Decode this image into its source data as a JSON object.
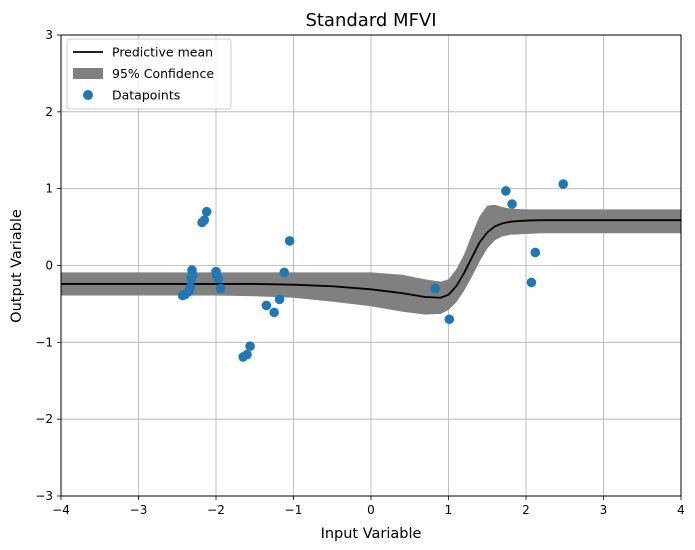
{
  "chart_data": {
    "type": "line",
    "title": "Standard MFVI",
    "xlabel": "Input Variable",
    "ylabel": "Output Variable",
    "xlim": [
      -4,
      4
    ],
    "ylim": [
      -3,
      3
    ],
    "grid": true,
    "legend_placement": "top-left",
    "x_ticks": [
      -4,
      -3,
      -2,
      -1,
      0,
      1,
      2,
      3,
      4
    ],
    "y_ticks": [
      -3,
      -2,
      -1,
      0,
      1,
      2,
      3
    ],
    "x_tick_labels": [
      "−4",
      "−3",
      "−2",
      "−1",
      "0",
      "1",
      "2",
      "3",
      "4"
    ],
    "y_tick_labels": [
      "−3",
      "−2",
      "−1",
      "0",
      "1",
      "2",
      "3"
    ],
    "colors": {
      "mean": "#000000",
      "band": "#808080",
      "points": "#1f77b4",
      "grid": "#b0b0b0"
    },
    "legend": [
      {
        "label": "Predictive mean",
        "kind": "line"
      },
      {
        "label": "95% Confidence",
        "kind": "band"
      },
      {
        "label": "Datapoints",
        "kind": "marker"
      }
    ],
    "series": [
      {
        "name": "Predictive mean",
        "x": [
          -4.0,
          -3.0,
          -2.0,
          -1.5,
          -1.0,
          -0.5,
          0.0,
          0.4,
          0.7,
          0.9,
          1.0,
          1.1,
          1.2,
          1.3,
          1.4,
          1.5,
          1.6,
          1.7,
          1.8,
          2.0,
          2.2,
          2.5,
          3.0,
          4.0
        ],
        "y": [
          -0.24,
          -0.24,
          -0.24,
          -0.24,
          -0.25,
          -0.27,
          -0.31,
          -0.36,
          -0.41,
          -0.42,
          -0.38,
          -0.27,
          -0.1,
          0.1,
          0.3,
          0.43,
          0.51,
          0.55,
          0.57,
          0.585,
          0.59,
          0.59,
          0.59,
          0.59
        ]
      },
      {
        "name": "95% Confidence",
        "x": [
          -4.0,
          -3.0,
          -2.0,
          -1.5,
          -1.0,
          -0.5,
          0.0,
          0.4,
          0.7,
          0.9,
          1.0,
          1.1,
          1.2,
          1.3,
          1.4,
          1.5,
          1.6,
          1.7,
          1.8,
          2.0,
          2.2,
          2.5,
          3.0,
          4.0
        ],
        "lower": [
          -0.39,
          -0.39,
          -0.39,
          -0.4,
          -0.42,
          -0.47,
          -0.53,
          -0.6,
          -0.64,
          -0.63,
          -0.58,
          -0.48,
          -0.33,
          -0.15,
          0.05,
          0.22,
          0.33,
          0.38,
          0.4,
          0.41,
          0.42,
          0.42,
          0.42,
          0.42
        ],
        "upper": [
          -0.09,
          -0.09,
          -0.09,
          -0.09,
          -0.09,
          -0.09,
          -0.09,
          -0.12,
          -0.18,
          -0.21,
          -0.18,
          -0.05,
          0.14,
          0.4,
          0.64,
          0.78,
          0.79,
          0.76,
          0.74,
          0.73,
          0.73,
          0.73,
          0.73,
          0.73
        ]
      },
      {
        "name": "Datapoints",
        "points": [
          [
            -2.43,
            -0.39
          ],
          [
            -2.4,
            -0.38
          ],
          [
            -2.35,
            -0.34
          ],
          [
            -2.33,
            -0.28
          ],
          [
            -2.32,
            -0.17
          ],
          [
            -2.31,
            -0.06
          ],
          [
            -2.3,
            -0.12
          ],
          [
            -2.18,
            0.56
          ],
          [
            -2.15,
            0.59
          ],
          [
            -2.12,
            0.7
          ],
          [
            -2.0,
            -0.08
          ],
          [
            -1.99,
            -0.13
          ],
          [
            -1.97,
            -0.17
          ],
          [
            -1.94,
            -0.3
          ],
          [
            -1.65,
            -1.19
          ],
          [
            -1.6,
            -1.16
          ],
          [
            -1.56,
            -1.05
          ],
          [
            -1.35,
            -0.52
          ],
          [
            -1.25,
            -0.61
          ],
          [
            -1.18,
            -0.44
          ],
          [
            -1.12,
            -0.09
          ],
          [
            -1.05,
            0.32
          ],
          [
            0.83,
            -0.3
          ],
          [
            1.01,
            -0.7
          ],
          [
            1.74,
            0.97
          ],
          [
            1.82,
            0.8
          ],
          [
            2.07,
            -0.22
          ],
          [
            2.12,
            0.17
          ],
          [
            2.48,
            1.06
          ]
        ]
      }
    ]
  }
}
